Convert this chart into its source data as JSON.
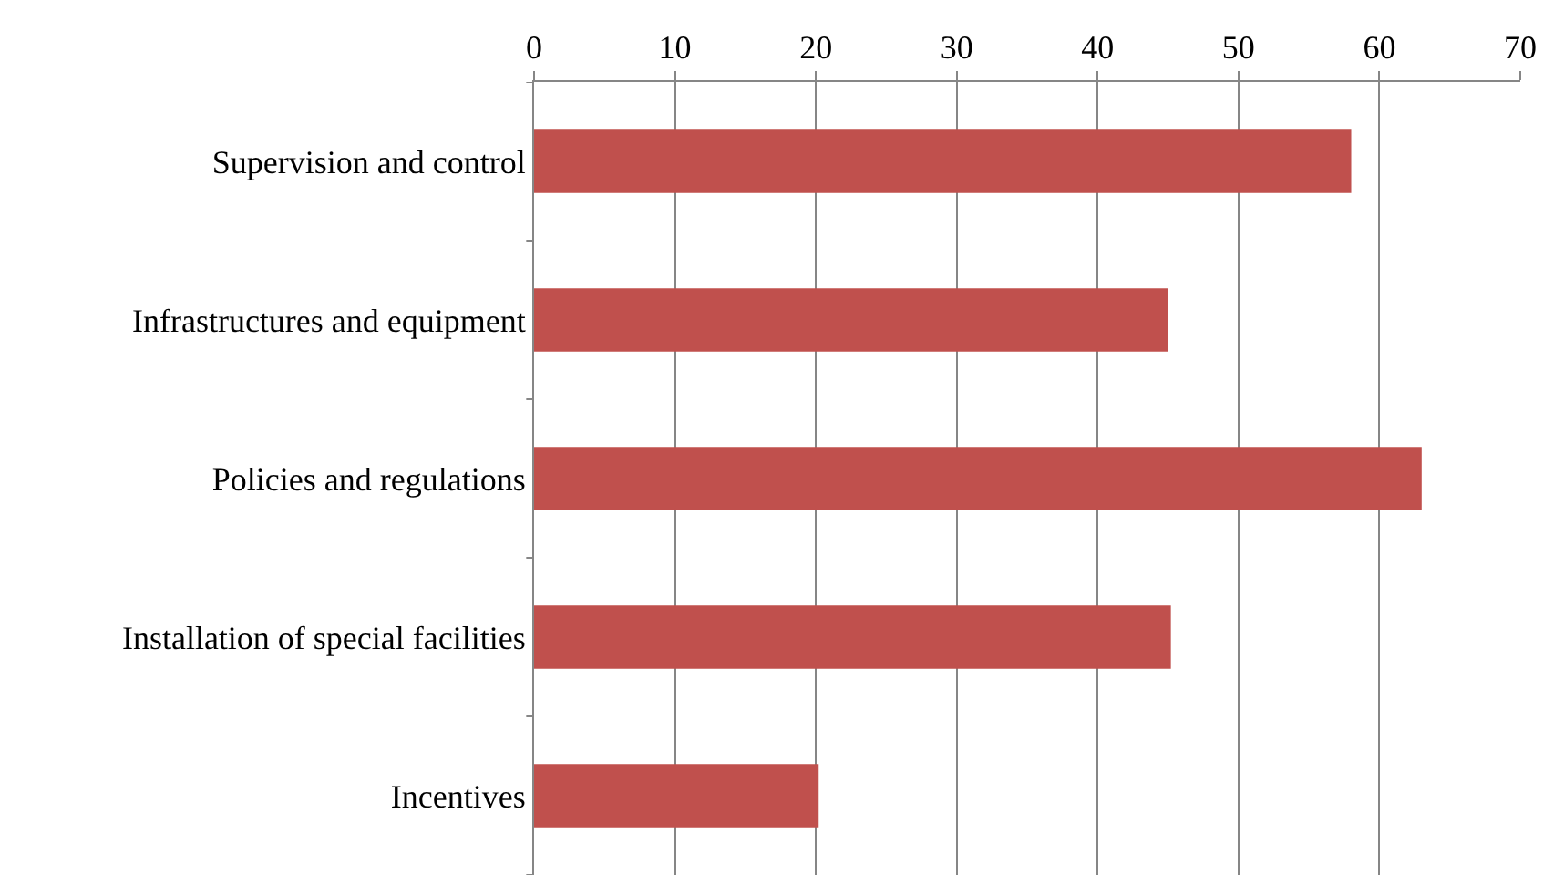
{
  "chart_data": {
    "type": "bar",
    "orientation": "horizontal",
    "categories": [
      "Supervision and control",
      "Infrastructures and equipment",
      "Policies and regulations",
      "Installation of special facilities",
      "Incentives"
    ],
    "values": [
      58,
      45,
      63,
      45.2,
      20.2
    ],
    "color": "#c0504d",
    "xlim": [
      0,
      70
    ],
    "xticks": [
      0,
      10,
      20,
      30,
      40,
      50,
      60,
      70
    ],
    "grid": "x",
    "legend": false
  }
}
